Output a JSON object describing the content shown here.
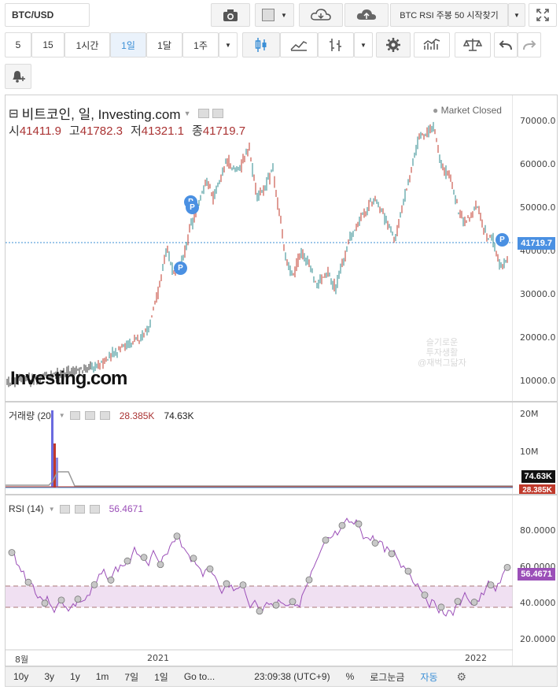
{
  "toolbar": {
    "symbol": "BTC/USD",
    "alert_label": "BTC RSI 주봉 50 시작찾기",
    "intervals": [
      "5",
      "15",
      "1시간",
      "1일",
      "1달",
      "1주"
    ],
    "active_interval": "1일"
  },
  "header": {
    "title": "비트코인, 일, Investing.com",
    "status": "Market Closed",
    "ohlc": [
      {
        "label": "시",
        "value": "41411.9"
      },
      {
        "label": "고",
        "value": "41782.3"
      },
      {
        "label": "저",
        "value": "41321.1"
      },
      {
        "label": "종",
        "value": "41719.7"
      }
    ]
  },
  "price_scale": [
    "70000.0",
    "60000.0",
    "50000.0",
    "40000.0",
    "30000.0",
    "20000.0",
    "10000.0"
  ],
  "last_price": "41719.7",
  "logo": "Investing.com",
  "watermark": {
    "line1": "슬기로운",
    "line2": "투자생활",
    "line3": "@재벅그닮자"
  },
  "volume": {
    "label": "거래량 (20)",
    "value1": "28.385K",
    "value2": "74.63K",
    "scale": [
      "20M",
      "10M"
    ],
    "tag1": "74.63K",
    "tag2": "28.385K"
  },
  "rsi": {
    "label": "RSI (14)",
    "value": "56.4671",
    "scale": [
      "80.0000",
      "60.0000",
      "40.0000",
      "20.0000"
    ],
    "tag": "56.4671"
  },
  "x_axis": [
    "8월",
    "2021",
    "2022"
  ],
  "bottom_bar": {
    "ranges": [
      "10y",
      "3y",
      "1y",
      "1m",
      "7일",
      "1일",
      "Go to..."
    ],
    "time": "23:09:38 (UTC+9)",
    "percent": "%",
    "log": "로그눈금",
    "auto": "자동"
  },
  "colors": {
    "up": "#2b8a8c",
    "down": "#c0392b",
    "accent": "#3b8fd6",
    "rsi": "#9b4fb8",
    "tag_blue": "#4a90e2"
  }
}
